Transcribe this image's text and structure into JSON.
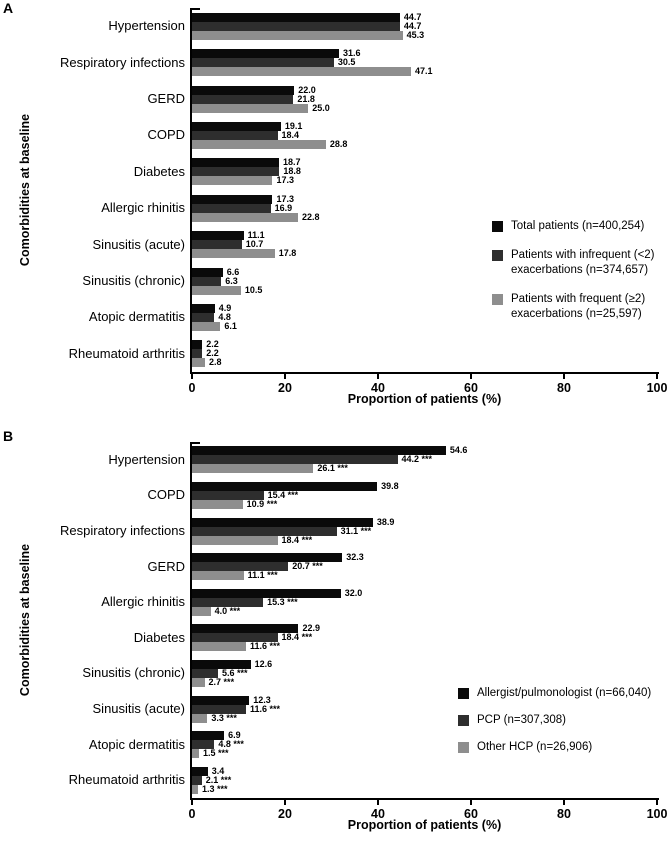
{
  "page": {
    "background": "#ffffff"
  },
  "colors": {
    "series1": "#0a0a0a",
    "series2": "#2e2e2e",
    "series3": "#8e8e8e",
    "axis": "#000000"
  },
  "chart_data": [
    {
      "panel_label": "A",
      "type": "bar",
      "orientation": "horizontal",
      "title": "",
      "xlabel": "Proportion of patients (%)",
      "ylabel": "Comorbidities at baseline",
      "xlim": [
        0,
        100
      ],
      "xticks": [
        "0",
        "20",
        "40",
        "60",
        "80",
        "100"
      ],
      "grid": false,
      "legend_position": "right-middle",
      "categories": [
        "Hypertension",
        "Respiratory infections",
        "GERD",
        "COPD",
        "Diabetes",
        "Allergic rhinitis",
        "Sinusitis (acute)",
        "Sinusitis (chronic)",
        "Atopic dermatitis",
        "Rheumatoid arthritis"
      ],
      "series": [
        {
          "name": "Total patients (n=400,254)",
          "color": "#0a0a0a",
          "values": [
            44.7,
            31.6,
            22.0,
            19.1,
            18.7,
            17.3,
            11.1,
            6.6,
            4.9,
            2.2
          ],
          "labels": [
            "44.7",
            "31.6",
            "22.0",
            "19.1",
            "18.7",
            "17.3",
            "11.1",
            "6.6",
            "4.9",
            "2.2"
          ],
          "legend_lines": [
            "Total patients (n=400,254)"
          ]
        },
        {
          "name": "Patients with infrequent (<2) exacerbations (n=374,657)",
          "color": "#2e2e2e",
          "values": [
            44.7,
            30.5,
            21.8,
            18.4,
            18.8,
            16.9,
            10.7,
            6.3,
            4.8,
            2.2
          ],
          "labels": [
            "44.7",
            "30.5",
            "21.8",
            "18.4",
            "18.8",
            "16.9",
            "10.7",
            "6.3",
            "4.8",
            "2.2"
          ],
          "legend_lines": [
            "Patients with infrequent (<2)",
            "exacerbations (n=374,657)"
          ]
        },
        {
          "name": "Patients with frequent (≥2) exacerbations (n=25,597)",
          "color": "#8e8e8e",
          "values": [
            45.3,
            47.1,
            25.0,
            28.8,
            17.3,
            22.8,
            17.8,
            10.5,
            6.1,
            2.8
          ],
          "labels": [
            "45.3",
            "47.1",
            "25.0",
            "28.8",
            "17.3",
            "22.8",
            "17.8",
            "10.5",
            "6.1",
            "2.8"
          ],
          "legend_lines": [
            "Patients with frequent (≥2)",
            "exacerbations (n=25,597)"
          ]
        }
      ]
    },
    {
      "panel_label": "B",
      "type": "bar",
      "orientation": "horizontal",
      "title": "",
      "xlabel": "Proportion of patients (%)",
      "ylabel": "Comorbidities at baseline",
      "xlim": [
        0,
        100
      ],
      "xticks": [
        "0",
        "20",
        "40",
        "60",
        "80",
        "100"
      ],
      "grid": false,
      "legend_position": "right-middle",
      "categories": [
        "Hypertension",
        "COPD",
        "Respiratory infections",
        "GERD",
        "Allergic rhinitis",
        "Diabetes",
        "Sinusitis (chronic)",
        "Sinusitis (acute)",
        "Atopic dermatitis",
        "Rheumatoid arthritis"
      ],
      "series": [
        {
          "name": "Allergist/pulmonologist (n=66,040)",
          "color": "#0a0a0a",
          "values": [
            54.6,
            39.8,
            38.9,
            32.3,
            32.0,
            22.9,
            12.6,
            12.3,
            6.9,
            3.4
          ],
          "labels": [
            "54.6",
            "39.8",
            "38.9",
            "32.3",
            "32.0",
            "22.9",
            "12.6",
            "12.3",
            "6.9",
            "3.4"
          ],
          "legend_lines": [
            "Allergist/pulmonologist (n=66,040)"
          ]
        },
        {
          "name": "PCP (n=307,308)",
          "color": "#2e2e2e",
          "values": [
            44.2,
            15.4,
            31.1,
            20.7,
            15.3,
            18.4,
            5.6,
            11.6,
            4.8,
            2.1
          ],
          "labels": [
            "44.2 ***",
            "15.4 ***",
            "31.1 ***",
            "20.7 ***",
            "15.3 ***",
            "18.4 ***",
            "5.6 ***",
            "11.6 ***",
            "4.8 ***",
            "2.1 ***"
          ],
          "legend_lines": [
            "PCP (n=307,308)"
          ]
        },
        {
          "name": "Other HCP (n=26,906)",
          "color": "#8e8e8e",
          "values": [
            26.1,
            10.9,
            18.4,
            11.1,
            4.0,
            11.6,
            2.7,
            3.3,
            1.5,
            1.3
          ],
          "labels": [
            "26.1 ***",
            "10.9 ***",
            "18.4 ***",
            "11.1 ***",
            "4.0 ***",
            "11.6 ***",
            "2.7 ***",
            "3.3 ***",
            "1.5 ***",
            "1.3 ***"
          ],
          "legend_lines": [
            "Other HCP (n=26,906)"
          ]
        }
      ]
    }
  ]
}
